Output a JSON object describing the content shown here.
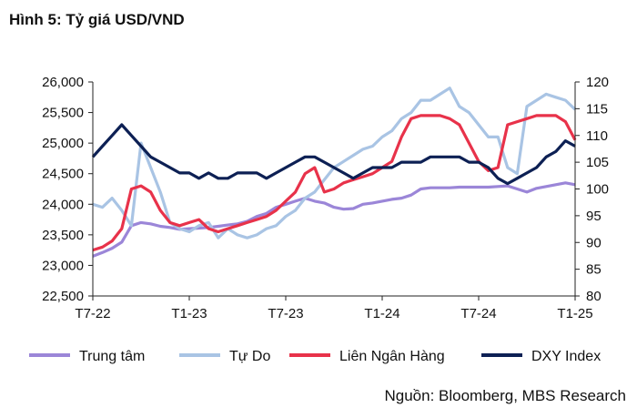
{
  "title": "Hình 5: Tỷ giá USD/VND",
  "source": "Nguồn: Bloomberg, MBS Research",
  "chart_data": {
    "type": "line",
    "x_labels": [
      "T7-22",
      "T1-23",
      "T7-23",
      "T1-24",
      "T7-24",
      "T1-25"
    ],
    "y_left": {
      "ticks": [
        "22,500",
        "23,000",
        "23,500",
        "24,000",
        "24,500",
        "25,000",
        "25,500",
        "26,000"
      ],
      "ylim": [
        22500,
        26000
      ]
    },
    "y_right": {
      "ticks": [
        "80",
        "85",
        "90",
        "95",
        "100",
        "105",
        "110",
        "115",
        "120"
      ],
      "ylim": [
        80,
        120
      ]
    },
    "grid": false,
    "legend_position": "bottom",
    "series": [
      {
        "name": "Trung tâm",
        "axis": "left",
        "color": "#9b86d8",
        "values": [
          23150,
          23210,
          23280,
          23380,
          23650,
          23700,
          23680,
          23640,
          23620,
          23590,
          23600,
          23610,
          23620,
          23640,
          23660,
          23680,
          23720,
          23800,
          23850,
          23950,
          24000,
          24050,
          24100,
          24050,
          24020,
          23950,
          23920,
          23930,
          24000,
          24020,
          24050,
          24080,
          24100,
          24150,
          24250,
          24270,
          24270,
          24270,
          24280,
          24280,
          24280,
          24280,
          24290,
          24300,
          24250,
          24200,
          24260,
          24290,
          24320,
          24350,
          24320
        ]
      },
      {
        "name": "Tự Do",
        "axis": "left",
        "color": "#a9c4e4",
        "values": [
          24000,
          23950,
          24100,
          23900,
          23650,
          25000,
          24600,
          24200,
          23700,
          23600,
          23550,
          23650,
          23700,
          23450,
          23600,
          23500,
          23450,
          23500,
          23600,
          23650,
          23800,
          23900,
          24100,
          24200,
          24400,
          24600,
          24700,
          24800,
          24900,
          24950,
          25100,
          25200,
          25400,
          25500,
          25700,
          25700,
          25800,
          25900,
          25600,
          25500,
          25300,
          25100,
          25100,
          24600,
          24500,
          25600,
          25700,
          25800,
          25750,
          25700,
          25550
        ]
      },
      {
        "name": "Liên Ngân Hàng",
        "axis": "left",
        "color": "#e8324a",
        "values": [
          23250,
          23300,
          23400,
          23600,
          24250,
          24300,
          24200,
          23900,
          23700,
          23650,
          23700,
          23750,
          23600,
          23550,
          23600,
          23650,
          23700,
          23750,
          23800,
          23900,
          24050,
          24200,
          24500,
          24600,
          24200,
          24250,
          24350,
          24400,
          24450,
          24500,
          24600,
          24700,
          25100,
          25400,
          25450,
          25450,
          25450,
          25400,
          25300,
          25000,
          24700,
          24550,
          24600,
          25300,
          25350,
          25400,
          25450,
          25450,
          25450,
          25350,
          25050
        ]
      },
      {
        "name": "DXY Index",
        "axis": "right",
        "color": "#0d2054",
        "values": [
          106,
          108,
          110,
          112,
          110,
          108,
          106,
          105,
          104,
          103,
          103,
          102,
          103,
          102,
          102,
          103,
          103,
          103,
          102,
          103,
          104,
          105,
          106,
          106,
          105,
          104,
          103,
          102,
          103,
          104,
          104,
          104,
          105,
          105,
          105,
          106,
          106,
          106,
          106,
          105,
          105,
          104,
          102,
          101,
          102,
          103,
          104,
          106,
          107,
          109,
          108
        ]
      }
    ]
  },
  "legend_labels": [
    "Trung tâm",
    "Tự Do",
    "Liên Ngân Hàng",
    "DXY Index"
  ]
}
